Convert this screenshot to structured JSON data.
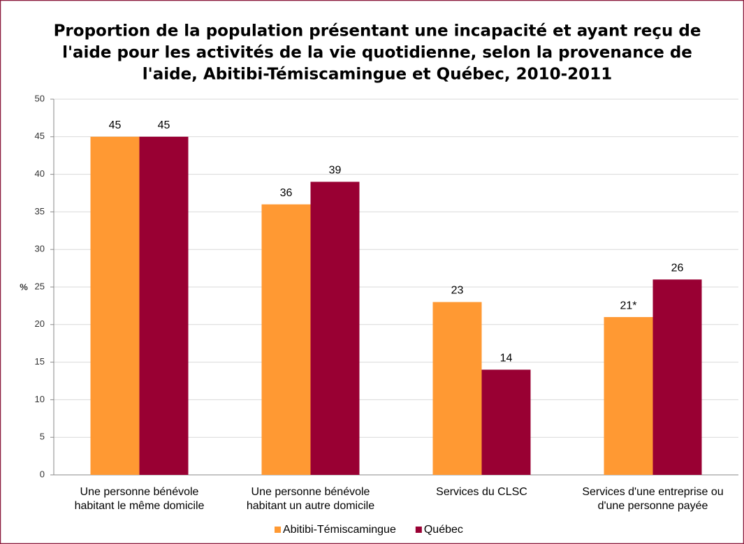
{
  "chart_data": {
    "type": "bar",
    "title": [
      "Proportion de la population présentant une incapacité et ayant reçu de",
      "l'aide pour les activités de la vie quotidienne, selon la provenance de",
      "l'aide, Abitibi-Témiscamingue et Québec, 2010-2011"
    ],
    "y_label": "%",
    "categories": [
      [
        "Une personne bénévole",
        "habitant le même domicile"
      ],
      [
        "Une personne bénévole",
        "habitant un autre domicile"
      ],
      [
        "Services du CLSC"
      ],
      [
        "Services d'une entreprise ou",
        "d'une personne payée"
      ]
    ],
    "series": [
      {
        "name": "Abitibi-Témiscamingue",
        "color": "#ff9933",
        "values": [
          45,
          36,
          23,
          21
        ],
        "value_labels": [
          "45",
          "36",
          "23",
          "21*"
        ]
      },
      {
        "name": "Québec",
        "color": "#990033",
        "values": [
          45,
          39,
          14,
          26
        ],
        "value_labels": [
          "45",
          "39",
          "14",
          "26"
        ]
      }
    ],
    "ylim": [
      0,
      50
    ],
    "yticks": [
      0,
      5,
      10,
      15,
      20,
      25,
      30,
      35,
      40,
      45,
      50
    ],
    "grid": true,
    "legend": "bottom"
  }
}
